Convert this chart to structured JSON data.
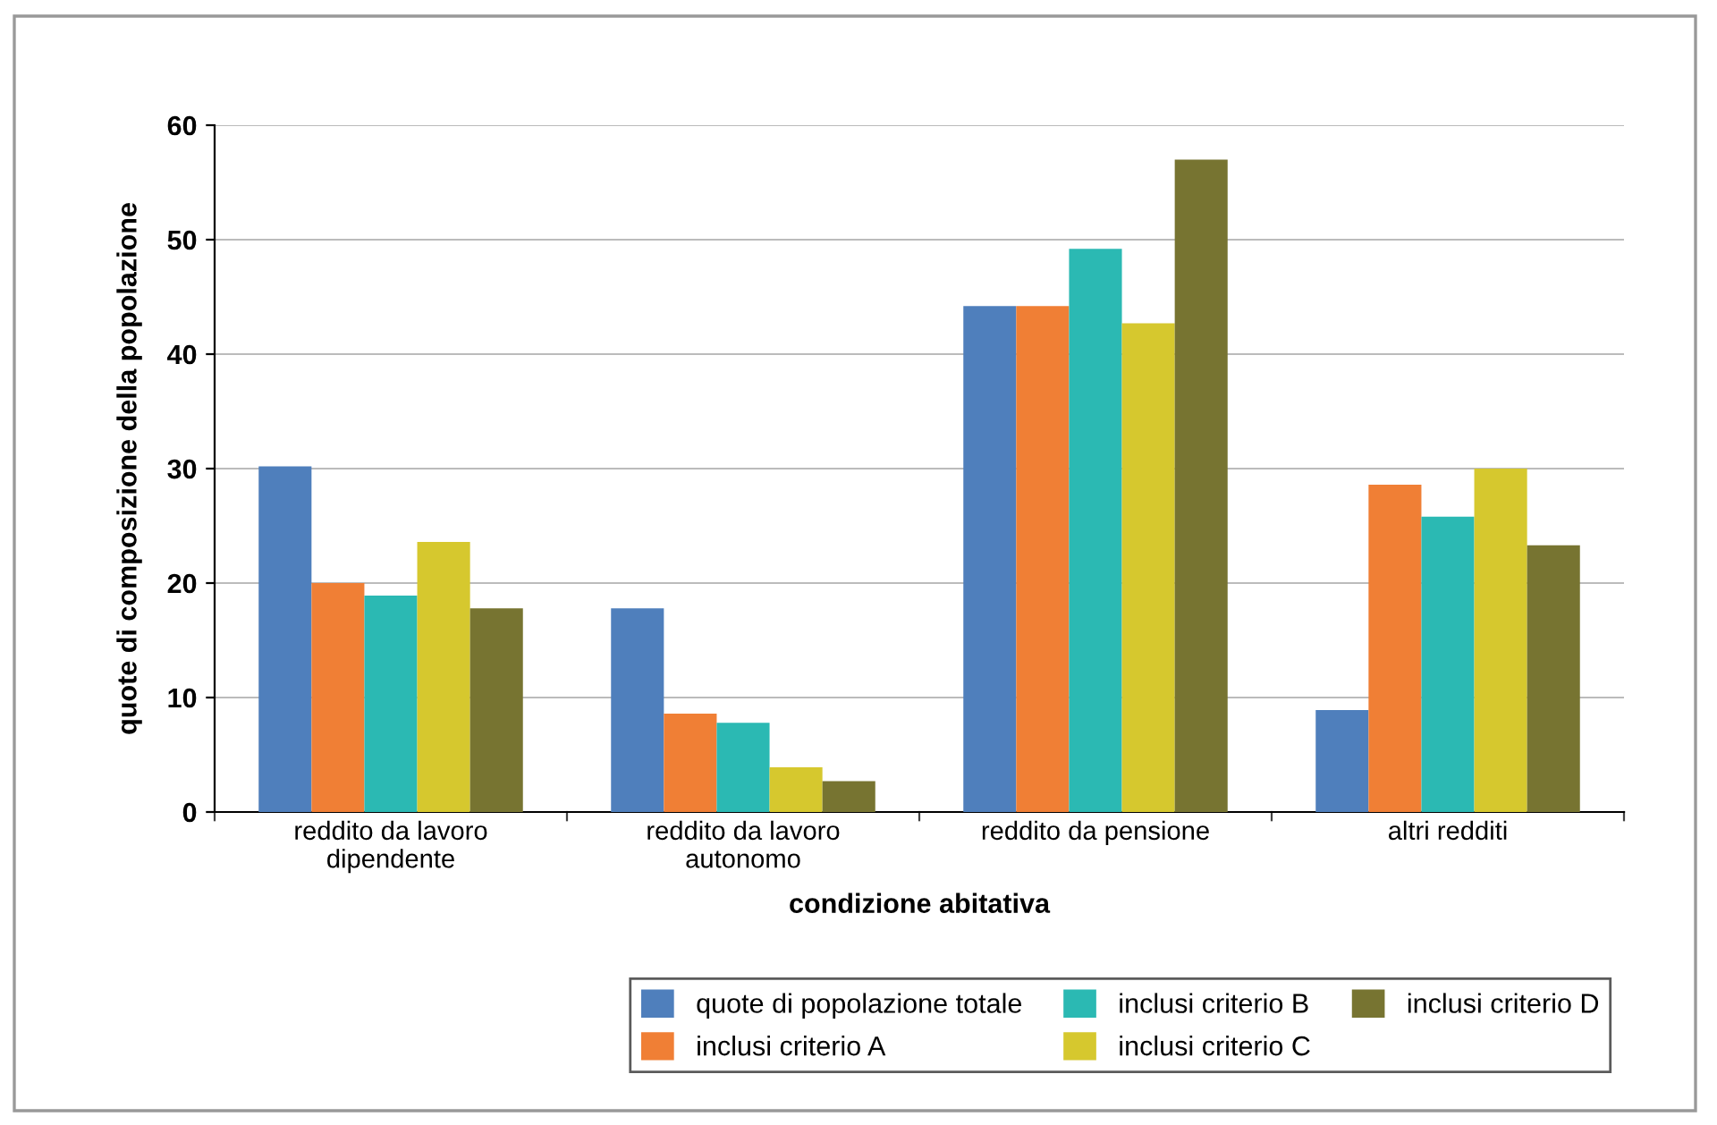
{
  "chart_data": {
    "type": "bar",
    "xlabel": "condizione abitativa",
    "ylabel": "quote di composizione della popolazione",
    "categories": [
      "reddito da lavoro\ndipendente",
      "reddito da lavoro\nautonomo",
      "reddito da pensione",
      "altri redditi"
    ],
    "series": [
      {
        "name": "quote di popolazione totale",
        "color": "#4f7fbc",
        "values": [
          30.2,
          17.8,
          44.2,
          8.9
        ]
      },
      {
        "name": "inclusi criterio A",
        "color": "#f07f35",
        "values": [
          20.0,
          8.6,
          44.2,
          28.6
        ]
      },
      {
        "name": "inclusi criterio B",
        "color": "#2bb9b3",
        "values": [
          18.9,
          7.8,
          49.2,
          25.8
        ]
      },
      {
        "name": "inclusi criterio C",
        "color": "#d6c82e",
        "values": [
          23.6,
          3.9,
          42.7,
          30.0
        ]
      },
      {
        "name": "inclusi criterio D",
        "color": "#777431",
        "values": [
          17.8,
          2.7,
          57.0,
          23.3
        ]
      }
    ],
    "ylim": [
      0,
      60
    ],
    "yticks": [
      0,
      10,
      20,
      30,
      40,
      50,
      60
    ],
    "grid": "y",
    "legend": "bottom right"
  }
}
